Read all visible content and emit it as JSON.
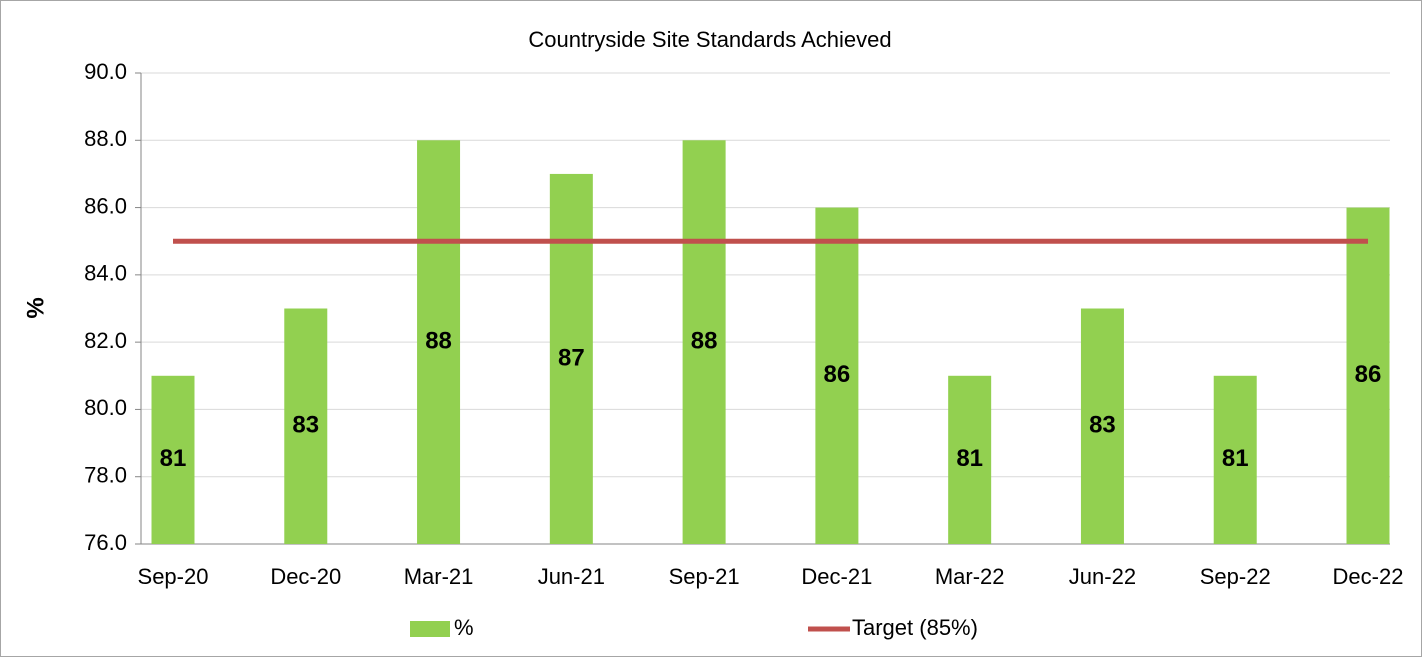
{
  "chart_data": {
    "type": "bar",
    "title": "Countryside Site Standards Achieved",
    "y_label": "%",
    "categories": [
      "Sep-20",
      "Dec-20",
      "Mar-21",
      "Jun-21",
      "Sep-21",
      "Dec-21",
      "Mar-22",
      "Jun-22",
      "Sep-22",
      "Dec-22"
    ],
    "series": [
      {
        "name": "%",
        "type": "bar",
        "color": "#92d050",
        "values": [
          81,
          83,
          88,
          87,
          88,
          86,
          81,
          83,
          81,
          86
        ]
      },
      {
        "name": "Target (85%)",
        "type": "line",
        "color": "#c0504d",
        "values": [
          85,
          85,
          85,
          85,
          85,
          85,
          85,
          85,
          85,
          85
        ]
      }
    ],
    "ylim": [
      76,
      90
    ],
    "yticks": [
      {
        "value": 76,
        "label": "76.0"
      },
      {
        "value": 78,
        "label": "78.0"
      },
      {
        "value": 80,
        "label": "80.0"
      },
      {
        "value": 82,
        "label": "82.0"
      },
      {
        "value": 84,
        "label": "84.0"
      },
      {
        "value": 86,
        "label": "86.0"
      },
      {
        "value": 88,
        "label": "88.0"
      },
      {
        "value": 90,
        "label": "90.0"
      }
    ],
    "grid": true,
    "legend": "bottom"
  }
}
